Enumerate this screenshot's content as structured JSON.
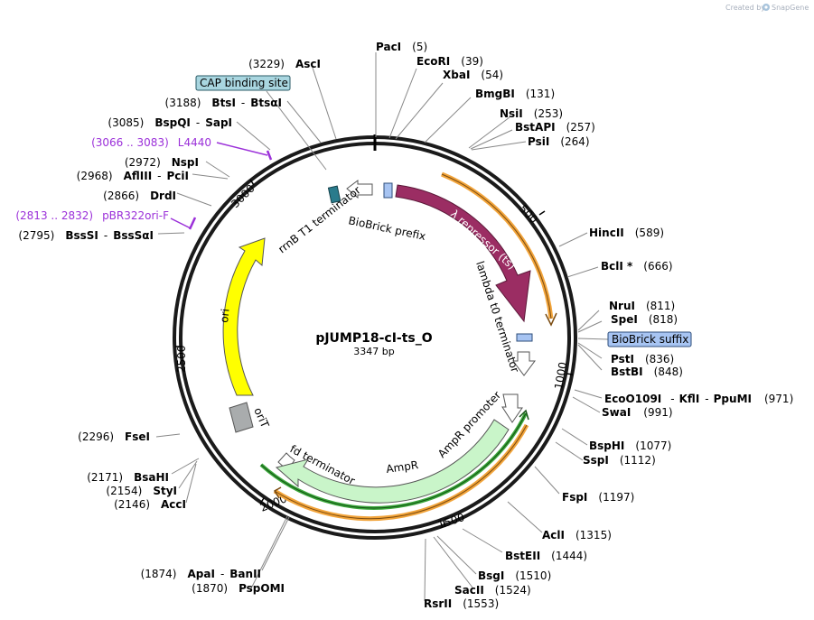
{
  "credit": {
    "prefix": "Created by",
    "brand": "SnapGene"
  },
  "plasmid": {
    "name": "pJUMP18-cI-ts_O",
    "length_label": "3347 bp"
  },
  "tick_labels": [
    "500",
    "1000",
    "1500",
    "2000",
    "2500",
    "3000"
  ],
  "features": {
    "lambda_repressor": "λ repressor (ts)",
    "lambda_t0": "lambda t0 terminator",
    "biobrick_prefix": "BioBrick prefix",
    "rrnb_t1": "rrnB T1 terminator",
    "ori": "ori",
    "orit": "oriT",
    "fd_terminator": "fd terminator",
    "ampr": "AmpR",
    "ampr_promoter": "AmpR promoter"
  },
  "boxed_labels": {
    "cap_binding_site": "CAP binding site",
    "biobrick_suffix": "BioBrick suffix"
  },
  "colors": {
    "backbone": "#1a1a1a",
    "lambda_repressor": "#9b2d63",
    "ori": "#ffff00",
    "ampr": "#c9f5c9",
    "orit": "#a9acad",
    "cap_box": "#a9d6e0",
    "biobrick_blue": "#a7c4f2",
    "primer_purple": "#9b30d9",
    "orange_track": "#f2a43a",
    "green_track": "#2e8b2e"
  },
  "sites": {
    "paci": {
      "name": "PacI",
      "pos": "(5)"
    },
    "ecori": {
      "name": "EcoRI",
      "pos": "(39)"
    },
    "xbai": {
      "name": "XbaI",
      "pos": "(54)"
    },
    "bmgbi": {
      "name": "BmgBI",
      "pos": "(131)"
    },
    "nsii": {
      "name": "NsiI",
      "pos": "(253)"
    },
    "bstapi": {
      "name": "BstAPI",
      "pos": "(257)"
    },
    "psii": {
      "name": "PsiI",
      "pos": "(264)"
    },
    "hincii": {
      "name": "HincII",
      "pos": "(589)"
    },
    "bcli": {
      "name": "BclI *",
      "pos": "(666)"
    },
    "nrui": {
      "name": "NruI",
      "pos": "(811)"
    },
    "spei": {
      "name": "SpeI",
      "pos": "(818)"
    },
    "psti": {
      "name": "PstI",
      "pos": "(836)"
    },
    "bstbi": {
      "name": "BstBI",
      "pos": "(848)"
    },
    "eco0109i": {
      "name": "EcoO109I",
      "dash1": "-",
      "name2": "KflI",
      "dash2": "-",
      "name3": "PpuMI",
      "pos": "(971)"
    },
    "swai": {
      "name": "SwaI",
      "pos": "(991)"
    },
    "bsphi": {
      "name": "BspHI",
      "pos": "(1077)"
    },
    "sspi": {
      "name": "SspI",
      "pos": "(1112)"
    },
    "fspi": {
      "name": "FspI",
      "pos": "(1197)"
    },
    "acli": {
      "name": "AclI",
      "pos": "(1315)"
    },
    "bsteii": {
      "name": "BstEII",
      "pos": "(1444)"
    },
    "bsgi": {
      "name": "BsgI",
      "pos": "(1510)"
    },
    "sacii": {
      "name": "SacII",
      "pos": "(1524)"
    },
    "rsrii": {
      "name": "RsrII",
      "pos": "(1553)"
    },
    "apai": {
      "pos": "(1874)",
      "name": "ApaI",
      "dash": "-",
      "name2": "BanII"
    },
    "pspomi": {
      "pos": "(1870)",
      "name": "PspOMI"
    },
    "fsei": {
      "pos": "(2296)",
      "name": "FseI"
    },
    "bsahi": {
      "pos": "(2171)",
      "name": "BsaHI"
    },
    "styi": {
      "pos": "(2154)",
      "name": "StyI"
    },
    "acci": {
      "pos": "(2146)",
      "name": "AccI"
    },
    "bsssi": {
      "pos": "(2795)",
      "name": "BssSI",
      "dash": "-",
      "name2": "BssSαI"
    },
    "drdi": {
      "pos": "(2866)",
      "name": "DrdI"
    },
    "afliii": {
      "pos": "(2968)",
      "name": "AflIII",
      "dash": "-",
      "name2": "PciI"
    },
    "nspi": {
      "pos": "(2972)",
      "name": "NspI"
    },
    "bspqi": {
      "pos": "(3085)",
      "name": "BspQI",
      "dash": "-",
      "name2": "SapI"
    },
    "btsi": {
      "pos": "(3188)",
      "name": "BtsI",
      "dash": "-",
      "name2": "BtsαI"
    },
    "asci": {
      "pos": "(3229)",
      "name": "AscI"
    }
  },
  "primers": {
    "l4440": {
      "range": "(3066 .. 3083)",
      "name": "L4440"
    },
    "pbr322": {
      "range": "(2813 .. 2832)",
      "name": "pBR322ori-F"
    }
  }
}
